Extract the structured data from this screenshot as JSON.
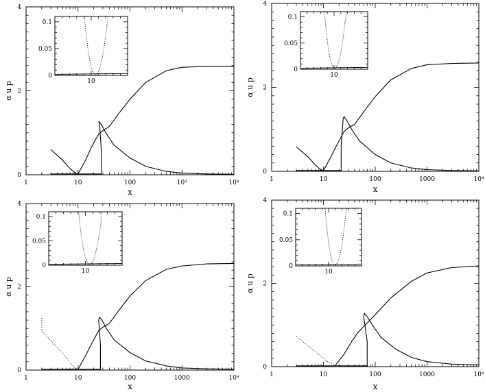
{
  "chart_data": [
    {
      "type": "line",
      "panel": "top-left",
      "xlabel": "x",
      "ylabel": "α u_p",
      "xscale": "log",
      "xlim": [
        1,
        10000
      ],
      "ylim": [
        0,
        4
      ],
      "x_tick_labels": [
        "1",
        "10",
        "100",
        "10³",
        "10⁴"
      ],
      "y_tick_labels": [
        "0",
        "2",
        "4"
      ],
      "series": [
        {
          "style": "solid",
          "points": [
            [
              3,
              0.6
            ],
            [
              5,
              0.35
            ],
            [
              7,
              0.15
            ],
            [
              9,
              0.03
            ],
            [
              10,
              0.02
            ],
            [
              14,
              0.35
            ],
            [
              18,
              0.65
            ],
            [
              22,
              0.85
            ],
            [
              25,
              0.97
            ],
            [
              30,
              1.05
            ],
            [
              40,
              1.15
            ],
            [
              60,
              1.45
            ],
            [
              100,
              1.8
            ],
            [
              200,
              2.2
            ],
            [
              500,
              2.48
            ],
            [
              1000,
              2.56
            ],
            [
              3000,
              2.58
            ],
            [
              10000,
              2.58
            ]
          ]
        },
        {
          "style": "solid",
          "points": [
            [
              3,
              0.02
            ],
            [
              9,
              0.02
            ],
            [
              12,
              0.02
            ],
            [
              28,
              0.02
            ],
            [
              28,
              0.6
            ],
            [
              26,
              1.2
            ],
            [
              25,
              1.27
            ],
            [
              28,
              1.2
            ],
            [
              35,
              0.98
            ],
            [
              50,
              0.7
            ],
            [
              100,
              0.4
            ],
            [
              200,
              0.2
            ],
            [
              500,
              0.08
            ],
            [
              1000,
              0.04
            ],
            [
              3000,
              0.02
            ],
            [
              10000,
              0.01
            ]
          ]
        }
      ],
      "inset": {
        "xlim": [
          5,
          15
        ],
        "ylim": [
          0,
          0.11
        ],
        "x_tick_labels": [
          "10"
        ],
        "y_tick_labels": [
          "0",
          "0.05",
          "0.1"
        ]
      }
    },
    {
      "type": "line",
      "panel": "top-right",
      "xlabel": "x",
      "ylabel": "α u_p",
      "xscale": "log",
      "xlim": [
        1,
        10000
      ],
      "ylim": [
        0,
        4
      ],
      "x_tick_labels": [
        "1",
        "10",
        "100",
        "1000",
        "10⁴"
      ],
      "y_tick_labels": [
        "0",
        "2",
        "4"
      ],
      "series": [
        {
          "style": "solid",
          "points": [
            [
              3,
              0.58
            ],
            [
              5,
              0.35
            ],
            [
              7,
              0.15
            ],
            [
              9,
              0.03
            ],
            [
              10,
              0.02
            ],
            [
              14,
              0.35
            ],
            [
              18,
              0.62
            ],
            [
              22,
              0.82
            ],
            [
              25,
              0.95
            ],
            [
              30,
              1.03
            ],
            [
              40,
              1.12
            ],
            [
              60,
              1.42
            ],
            [
              100,
              1.78
            ],
            [
              200,
              2.18
            ],
            [
              500,
              2.45
            ],
            [
              1000,
              2.54
            ],
            [
              3000,
              2.57
            ],
            [
              10000,
              2.58
            ]
          ]
        },
        {
          "style": "solid",
          "points": [
            [
              3,
              0.02
            ],
            [
              9,
              0.02
            ],
            [
              12,
              0.02
            ],
            [
              22,
              0.02
            ],
            [
              22,
              0.6
            ],
            [
              24,
              1.25
            ],
            [
              25,
              1.3
            ],
            [
              28,
              1.22
            ],
            [
              35,
              1.0
            ],
            [
              50,
              0.72
            ],
            [
              100,
              0.4
            ],
            [
              200,
              0.2
            ],
            [
              500,
              0.08
            ],
            [
              1000,
              0.04
            ],
            [
              3000,
              0.02
            ],
            [
              10000,
              0.01
            ]
          ]
        }
      ],
      "inset": {
        "xlim": [
          5,
          15
        ],
        "ylim": [
          0,
          0.11
        ],
        "x_tick_labels": [
          "10"
        ],
        "y_tick_labels": [
          "0",
          "0.05",
          "0.1"
        ]
      }
    },
    {
      "type": "line",
      "panel": "bottom-left",
      "xlabel": "x",
      "ylabel": "α u_p",
      "xscale": "log",
      "xlim": [
        1,
        10000
      ],
      "ylim": [
        0,
        4
      ],
      "x_tick_labels": [
        "1",
        "10",
        "100",
        "1000",
        "10⁴"
      ],
      "y_tick_labels": [
        "0",
        "2",
        "4"
      ],
      "series": [
        {
          "style": "dotted",
          "points": [
            [
              2,
              1.25
            ],
            [
              2,
              0.95
            ],
            [
              3,
              0.7
            ],
            [
              5,
              0.42
            ],
            [
              7,
              0.18
            ],
            [
              9,
              0.04
            ],
            [
              10,
              0.02
            ]
          ]
        },
        {
          "style": "solid",
          "points": [
            [
              10,
              0.02
            ],
            [
              14,
              0.35
            ],
            [
              18,
              0.62
            ],
            [
              22,
              0.82
            ],
            [
              25,
              0.95
            ],
            [
              30,
              1.03
            ],
            [
              40,
              1.12
            ],
            [
              60,
              1.42
            ],
            [
              100,
              1.78
            ],
            [
              200,
              2.15
            ],
            [
              500,
              2.42
            ],
            [
              1000,
              2.5
            ],
            [
              3000,
              2.55
            ],
            [
              10000,
              2.56
            ]
          ]
        },
        {
          "style": "solid",
          "points": [
            [
              2,
              0.02
            ],
            [
              9,
              0.02
            ],
            [
              12,
              0.02
            ],
            [
              27,
              0.02
            ],
            [
              27,
              0.6
            ],
            [
              25,
              1.2
            ],
            [
              26,
              1.27
            ],
            [
              29,
              1.2
            ],
            [
              35,
              1.0
            ],
            [
              50,
              0.72
            ],
            [
              100,
              0.42
            ],
            [
              200,
              0.22
            ],
            [
              500,
              0.1
            ],
            [
              1000,
              0.05
            ],
            [
              3000,
              0.03
            ],
            [
              10000,
              0.02
            ]
          ]
        }
      ],
      "inset": {
        "xlim": [
          5,
          15
        ],
        "ylim": [
          0,
          0.11
        ],
        "x_tick_labels": [
          "10"
        ],
        "y_tick_labels": [
          "0",
          "0.05",
          "0.1"
        ]
      }
    },
    {
      "type": "line",
      "panel": "bottom-right",
      "xlabel": "x",
      "ylabel": "α u_p",
      "xscale": "log",
      "xlim": [
        1,
        10000
      ],
      "ylim": [
        0,
        4
      ],
      "x_tick_labels": [
        "1",
        "10",
        "100",
        "1000",
        "10⁴"
      ],
      "y_tick_labels": [
        "0",
        "2",
        "4"
      ],
      "series": [
        {
          "style": "dotted",
          "points": [
            [
              3,
              0.72
            ],
            [
              5,
              0.5
            ],
            [
              8,
              0.3
            ],
            [
              12,
              0.12
            ],
            [
              17,
              0.03
            ]
          ]
        },
        {
          "style": "solid",
          "points": [
            [
              17,
              0.03
            ],
            [
              25,
              0.3
            ],
            [
              35,
              0.6
            ],
            [
              45,
              0.8
            ],
            [
              55,
              0.92
            ],
            [
              70,
              1.05
            ],
            [
              100,
              1.25
            ],
            [
              200,
              1.65
            ],
            [
              500,
              2.05
            ],
            [
              1000,
              2.25
            ],
            [
              3000,
              2.38
            ],
            [
              10000,
              2.42
            ]
          ]
        },
        {
          "style": "solid",
          "points": [
            [
              3,
              0.02
            ],
            [
              12,
              0.02
            ],
            [
              20,
              0.02
            ],
            [
              70,
              0.02
            ],
            [
              70,
              0.6
            ],
            [
              60,
              1.2
            ],
            [
              62,
              1.28
            ],
            [
              70,
              1.2
            ],
            [
              90,
              0.98
            ],
            [
              130,
              0.7
            ],
            [
              250,
              0.42
            ],
            [
              500,
              0.22
            ],
            [
              1000,
              0.12
            ],
            [
              3000,
              0.06
            ],
            [
              10000,
              0.04
            ]
          ]
        }
      ],
      "inset": {
        "xlim": [
          5,
          15
        ],
        "ylim": [
          0,
          0.11
        ],
        "x_tick_labels": [
          "10"
        ],
        "y_tick_labels": [
          "0",
          "0.05",
          "0.1"
        ]
      }
    }
  ]
}
